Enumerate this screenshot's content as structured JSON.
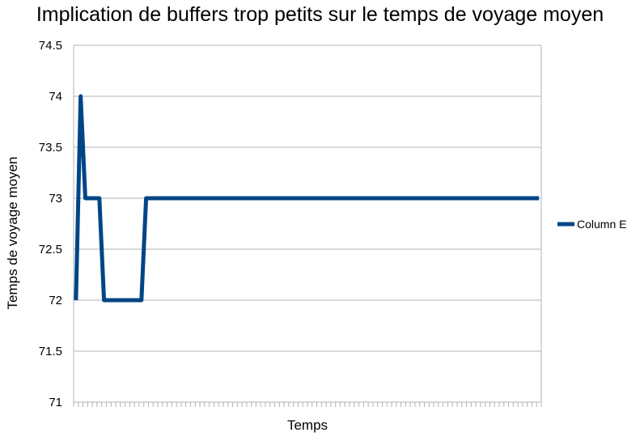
{
  "chart_data": {
    "type": "line",
    "title": "Implication de buffers trop petits sur le temps de voyage moyen",
    "xlabel": "Temps",
    "ylabel": "Temps de voyage moyen",
    "ylim": [
      71,
      74.5
    ],
    "yticks": [
      "71",
      "71.5",
      "72",
      "72.5",
      "73",
      "73.5",
      "74",
      "74.5"
    ],
    "x_count": 100,
    "grid": true,
    "legend": "right",
    "series": [
      {
        "name": "Column E",
        "color": "#004586",
        "values": [
          72,
          74,
          73,
          73,
          73,
          73,
          72,
          72,
          72,
          72,
          72,
          72,
          72,
          72,
          72,
          73,
          73,
          73,
          73,
          73,
          73,
          73,
          73,
          73,
          73,
          73,
          73,
          73,
          73,
          73,
          73,
          73,
          73,
          73,
          73,
          73,
          73,
          73,
          73,
          73,
          73,
          73,
          73,
          73,
          73,
          73,
          73,
          73,
          73,
          73,
          73,
          73,
          73,
          73,
          73,
          73,
          73,
          73,
          73,
          73,
          73,
          73,
          73,
          73,
          73,
          73,
          73,
          73,
          73,
          73,
          73,
          73,
          73,
          73,
          73,
          73,
          73,
          73,
          73,
          73,
          73,
          73,
          73,
          73,
          73,
          73,
          73,
          73,
          73,
          73,
          73,
          73,
          73,
          73,
          73,
          73,
          73,
          73,
          73,
          73
        ]
      }
    ]
  }
}
